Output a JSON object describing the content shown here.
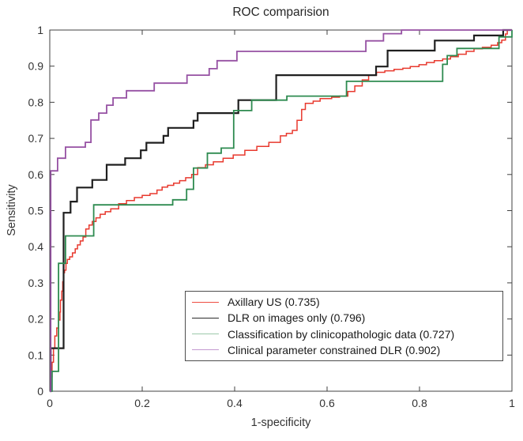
{
  "figure": {
    "title": "ROC comparision",
    "xlabel": "1-specificity",
    "ylabel": "Sensitivity"
  },
  "chart_data": {
    "type": "line",
    "subtype": "roc-step-curves",
    "title": "ROC comparision",
    "xlabel": "1-specificity",
    "ylabel": "Sensitivity",
    "xlim": [
      0,
      1
    ],
    "ylim": [
      0,
      1
    ],
    "grid": false,
    "axis_color": "#404040",
    "x_tick_values": [
      0,
      0.2,
      0.4,
      0.6,
      0.8,
      1
    ],
    "x_tick_labels": [
      "0",
      "0.2",
      "0.4",
      "0.6",
      "0.8",
      "1"
    ],
    "y_tick_values": [
      0,
      0.1,
      0.2,
      0.3,
      0.4,
      0.5,
      0.6,
      0.7,
      0.8,
      0.9,
      1
    ],
    "y_tick_labels": [
      "0",
      "0.1",
      "0.2",
      "0.3",
      "0.4",
      "0.5",
      "0.6",
      "0.7",
      "0.8",
      "0.9",
      "1"
    ],
    "legend": {
      "position": "lower-right-inside",
      "border": true
    },
    "series": [
      {
        "name": "Axillary US (0.735)",
        "auc": 0.735,
        "color": "#e8392e",
        "legend_color": "#ee4d42",
        "line_width": 1.5,
        "points": [
          [
            0,
            0
          ],
          [
            0.003,
            0.04
          ],
          [
            0.005,
            0.08
          ],
          [
            0.008,
            0.12
          ],
          [
            0.011,
            0.153
          ],
          [
            0.015,
            0.175
          ],
          [
            0.019,
            0.197
          ],
          [
            0.022,
            0.219
          ],
          [
            0.023,
            0.252
          ],
          [
            0.026,
            0.277
          ],
          [
            0.028,
            0.303
          ],
          [
            0.03,
            0.328
          ],
          [
            0.032,
            0.335
          ],
          [
            0.035,
            0.354
          ],
          [
            0.038,
            0.365
          ],
          [
            0.043,
            0.372
          ],
          [
            0.049,
            0.383
          ],
          [
            0.055,
            0.394
          ],
          [
            0.06,
            0.405
          ],
          [
            0.066,
            0.416
          ],
          [
            0.072,
            0.427
          ],
          [
            0.078,
            0.449
          ],
          [
            0.085,
            0.46
          ],
          [
            0.092,
            0.47
          ],
          [
            0.1,
            0.48
          ],
          [
            0.109,
            0.49
          ],
          [
            0.12,
            0.497
          ],
          [
            0.132,
            0.505
          ],
          [
            0.149,
            0.519
          ],
          [
            0.166,
            0.528
          ],
          [
            0.183,
            0.536
          ],
          [
            0.2,
            0.542
          ],
          [
            0.217,
            0.547
          ],
          [
            0.232,
            0.557
          ],
          [
            0.243,
            0.565
          ],
          [
            0.255,
            0.57
          ],
          [
            0.268,
            0.576
          ],
          [
            0.281,
            0.583
          ],
          [
            0.294,
            0.591
          ],
          [
            0.307,
            0.6
          ],
          [
            0.32,
            0.619
          ],
          [
            0.337,
            0.627
          ],
          [
            0.354,
            0.635
          ],
          [
            0.375,
            0.645
          ],
          [
            0.397,
            0.654
          ],
          [
            0.422,
            0.667
          ],
          [
            0.448,
            0.678
          ],
          [
            0.474,
            0.689
          ],
          [
            0.499,
            0.707
          ],
          [
            0.512,
            0.714
          ],
          [
            0.525,
            0.722
          ],
          [
            0.535,
            0.75
          ],
          [
            0.545,
            0.78
          ],
          [
            0.553,
            0.797
          ],
          [
            0.57,
            0.803
          ],
          [
            0.585,
            0.81
          ],
          [
            0.61,
            0.814
          ],
          [
            0.627,
            0.817
          ],
          [
            0.645,
            0.83
          ],
          [
            0.66,
            0.845
          ],
          [
            0.676,
            0.862
          ],
          [
            0.69,
            0.875
          ],
          [
            0.707,
            0.883
          ],
          [
            0.725,
            0.887
          ],
          [
            0.745,
            0.891
          ],
          [
            0.764,
            0.894
          ],
          [
            0.78,
            0.899
          ],
          [
            0.799,
            0.904
          ],
          [
            0.815,
            0.91
          ],
          [
            0.832,
            0.915
          ],
          [
            0.85,
            0.92
          ],
          [
            0.867,
            0.926
          ],
          [
            0.884,
            0.933
          ],
          [
            0.901,
            0.941
          ],
          [
            0.918,
            0.948
          ],
          [
            0.936,
            0.952
          ],
          [
            0.955,
            0.958
          ],
          [
            0.969,
            0.965
          ],
          [
            0.978,
            0.972
          ],
          [
            0.986,
            0.989
          ],
          [
            0.99,
            1
          ],
          [
            1,
            1
          ]
        ]
      },
      {
        "name": "DLR on images only (0.796)",
        "auc": 0.796,
        "color": "#1f1f1f",
        "legend_color": "#2b2b2b",
        "line_width": 2.2,
        "points": [
          [
            0,
            0
          ],
          [
            0.002,
            0.119
          ],
          [
            0.03,
            0.494
          ],
          [
            0.045,
            0.525
          ],
          [
            0.059,
            0.564
          ],
          [
            0.092,
            0.585
          ],
          [
            0.123,
            0.627
          ],
          [
            0.163,
            0.645
          ],
          [
            0.197,
            0.667
          ],
          [
            0.209,
            0.688
          ],
          [
            0.246,
            0.707
          ],
          [
            0.256,
            0.729
          ],
          [
            0.311,
            0.749
          ],
          [
            0.32,
            0.77
          ],
          [
            0.408,
            0.806
          ],
          [
            0.49,
            0.875
          ],
          [
            0.706,
            0.899
          ],
          [
            0.731,
            0.943
          ],
          [
            0.833,
            0.971
          ],
          [
            0.918,
            0.985
          ],
          [
            0.981,
            1
          ],
          [
            1,
            1
          ]
        ]
      },
      {
        "name": "Classification by clinicopathologic data (0.727)",
        "auc": 0.727,
        "color": "#2e8b50",
        "legend_color": "#9cc8aa",
        "line_width": 1.8,
        "points": [
          [
            0,
            0
          ],
          [
            0.005,
            0.055
          ],
          [
            0.019,
            0.354
          ],
          [
            0.034,
            0.43
          ],
          [
            0.095,
            0.516
          ],
          [
            0.266,
            0.53
          ],
          [
            0.296,
            0.559
          ],
          [
            0.311,
            0.618
          ],
          [
            0.341,
            0.659
          ],
          [
            0.371,
            0.673
          ],
          [
            0.398,
            0.777
          ],
          [
            0.437,
            0.806
          ],
          [
            0.513,
            0.817
          ],
          [
            0.642,
            0.858
          ],
          [
            0.85,
            0.905
          ],
          [
            0.86,
            0.929
          ],
          [
            0.881,
            0.949
          ],
          [
            0.972,
            0.981
          ],
          [
            1,
            1
          ]
        ]
      },
      {
        "name": "Clinical parameter constrained DLR (0.902)",
        "auc": 0.902,
        "color": "#9651a3",
        "legend_color": "#c49ad0",
        "line_width": 1.8,
        "points": [
          [
            0,
            0
          ],
          [
            0.002,
            0.61
          ],
          [
            0.017,
            0.645
          ],
          [
            0.034,
            0.676
          ],
          [
            0.077,
            0.689
          ],
          [
            0.089,
            0.751
          ],
          [
            0.106,
            0.77
          ],
          [
            0.123,
            0.792
          ],
          [
            0.137,
            0.812
          ],
          [
            0.166,
            0.832
          ],
          [
            0.226,
            0.853
          ],
          [
            0.297,
            0.875
          ],
          [
            0.345,
            0.893
          ],
          [
            0.362,
            0.915
          ],
          [
            0.405,
            0.941
          ],
          [
            0.684,
            0.97
          ],
          [
            0.722,
            0.99
          ],
          [
            0.761,
            1
          ],
          [
            1,
            1
          ]
        ]
      }
    ]
  }
}
